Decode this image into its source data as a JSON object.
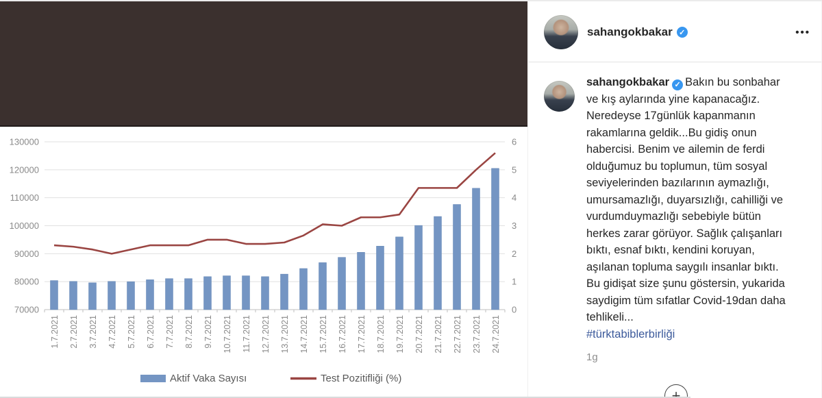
{
  "post": {
    "username": "sahangokbakar",
    "verified": true,
    "caption_text": "Bakın bu sonbahar ve kış aylarında yine kapanacağız. Neredeyse 17günlük kapanmanın rakamlarına geldik...Bu gidiş onun habercisi. Benim ve ailemin de ferdi olduğumuz bu toplumun, tüm sosyal seviyelerinden bazılarının aymazlığı, umursamazlığı, duyarsızlığı, cahilliği ve vurdumduymazlığı sebebiyle bütün herkes zarar görüyor. Sağlık çalışanları bıktı, esnaf bıktı, kendini koruyan, aşılanan topluma saygılı insanlar bıktı. Bu gidişat size şunu göstersin, yukarida saydigim tüm sıfatlar Covid-19dan daha tehlikeli...",
    "hashtag": "#türktabiblerbirliği",
    "timestamp": "1g"
  },
  "icons": {
    "verified": "✓",
    "more_options": "•••",
    "load_more": "+"
  },
  "colors": {
    "accent_blue": "#3897f0",
    "hashtag": "#3c5a9b",
    "banner_brown": "#3b302e"
  },
  "chart_data": {
    "type": "bar",
    "title": "",
    "categories": [
      "1.7.2021",
      "2.7.2021",
      "3.7.2021",
      "4.7.2021",
      "5.7.2021",
      "6.7.2021",
      "7.7.2021",
      "8.7.2021",
      "9.7.2021",
      "10.7.2021",
      "11.7.2021",
      "12.7.2021",
      "13.7.2021",
      "14.7.2021",
      "15.7.2021",
      "16.7.2021",
      "17.7.2021",
      "18.7.2021",
      "19.7.2021",
      "20.7.2021",
      "21.7.2021",
      "22.7.2021",
      "23.7.2021",
      "24.7.2021"
    ],
    "series": [
      {
        "name": "Aktif Vaka Sayısı",
        "type": "bar",
        "axis": "left",
        "color": "#7495c3",
        "values": [
          80400,
          80100,
          79600,
          80100,
          80000,
          80700,
          81100,
          81100,
          81800,
          82100,
          82100,
          81800,
          82700,
          84700,
          86800,
          88700,
          90500,
          92700,
          96000,
          100100,
          103300,
          107600,
          113400,
          120500
        ]
      },
      {
        "name": "Test Pozitifliği (%)",
        "type": "line",
        "axis": "right",
        "color": "#9a4542",
        "values": [
          2.3,
          2.25,
          2.15,
          2.0,
          2.15,
          2.3,
          2.3,
          2.3,
          2.5,
          2.5,
          2.35,
          2.35,
          2.4,
          2.65,
          3.05,
          3.0,
          3.3,
          3.3,
          3.4,
          4.35,
          4.35,
          4.35,
          5.0,
          5.6
        ]
      }
    ],
    "left_axis": {
      "min": 70000,
      "max": 130000,
      "step": 10000
    },
    "right_axis": {
      "min": 0,
      "max": 6,
      "step": 1
    },
    "grid": true,
    "legend_position": "bottom"
  }
}
